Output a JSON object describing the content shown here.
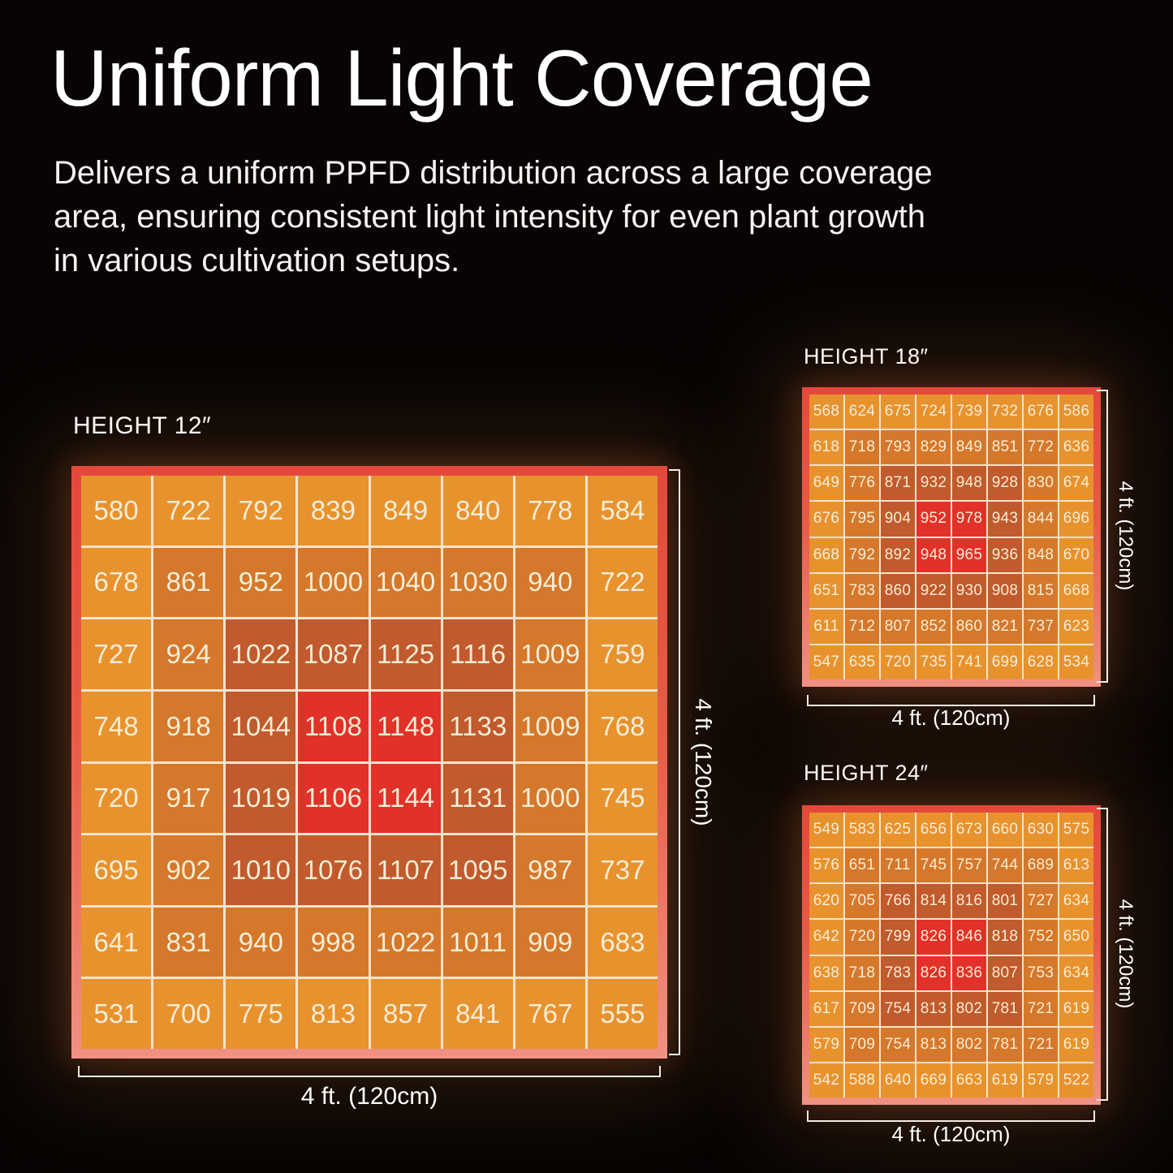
{
  "title": "Uniform Light Coverage",
  "description_lines": [
    "Delivers a uniform PPFD distribution across a large coverage",
    "area, ensuring consistent light intensity for even plant growth",
    "in various cultivation setups."
  ],
  "colors": {
    "background": "#070403",
    "heading_text": "#FFFFFF",
    "body_text": "#F5F3F1",
    "cell_text": "#F7EDD6",
    "grid_line": "#F7E3CC",
    "frame_red_top": "#E4483C",
    "frame_salmon_bottom": "#F09183",
    "bracket": "#F3EDE5",
    "levels": [
      "#E8922E",
      "#D5782B",
      "#C15A2C",
      "#E23129"
    ]
  },
  "chart_data": [
    {
      "type": "heatmap",
      "title": "HEIGHT 12″",
      "x_label": "4 ft. (120cm)",
      "y_label": "4 ft. (120cm)",
      "values": [
        [
          580,
          722,
          792,
          839,
          849,
          840,
          778,
          584
        ],
        [
          678,
          861,
          952,
          1000,
          1040,
          1030,
          940,
          722
        ],
        [
          727,
          924,
          1022,
          1087,
          1125,
          1116,
          1009,
          759
        ],
        [
          748,
          918,
          1044,
          1108,
          1148,
          1133,
          1009,
          768
        ],
        [
          720,
          917,
          1019,
          1106,
          1144,
          1131,
          1000,
          745
        ],
        [
          695,
          902,
          1010,
          1076,
          1107,
          1095,
          987,
          737
        ],
        [
          641,
          831,
          940,
          998,
          1022,
          1011,
          909,
          683
        ],
        [
          531,
          700,
          775,
          813,
          857,
          841,
          767,
          555
        ]
      ],
      "levels": [
        [
          0,
          0,
          0,
          0,
          0,
          0,
          0,
          0
        ],
        [
          0,
          1,
          1,
          1,
          1,
          1,
          1,
          0
        ],
        [
          0,
          1,
          2,
          2,
          2,
          2,
          1,
          0
        ],
        [
          0,
          1,
          2,
          3,
          3,
          2,
          1,
          0
        ],
        [
          0,
          1,
          2,
          3,
          3,
          2,
          1,
          0
        ],
        [
          0,
          1,
          2,
          2,
          2,
          2,
          1,
          0
        ],
        [
          0,
          1,
          1,
          1,
          1,
          1,
          1,
          0
        ],
        [
          0,
          0,
          0,
          0,
          0,
          0,
          0,
          0
        ]
      ]
    },
    {
      "type": "heatmap",
      "title": "HEIGHT 18″",
      "x_label": "4 ft. (120cm)",
      "y_label": "4 ft. (120cm)",
      "values": [
        [
          568,
          624,
          675,
          724,
          739,
          732,
          676,
          586
        ],
        [
          618,
          718,
          793,
          829,
          849,
          851,
          772,
          636
        ],
        [
          649,
          776,
          871,
          932,
          948,
          928,
          830,
          674
        ],
        [
          676,
          795,
          904,
          952,
          978,
          943,
          844,
          696
        ],
        [
          668,
          792,
          892,
          948,
          965,
          936,
          848,
          670
        ],
        [
          651,
          783,
          860,
          922,
          930,
          908,
          815,
          668
        ],
        [
          611,
          712,
          807,
          852,
          860,
          821,
          737,
          623
        ],
        [
          547,
          635,
          720,
          735,
          741,
          699,
          628,
          534
        ]
      ],
      "levels": [
        [
          0,
          0,
          0,
          0,
          0,
          0,
          0,
          0
        ],
        [
          0,
          1,
          1,
          1,
          1,
          1,
          1,
          0
        ],
        [
          0,
          1,
          2,
          2,
          2,
          2,
          1,
          0
        ],
        [
          0,
          1,
          2,
          3,
          3,
          2,
          1,
          0
        ],
        [
          0,
          1,
          2,
          3,
          3,
          2,
          1,
          0
        ],
        [
          0,
          1,
          2,
          2,
          2,
          2,
          1,
          0
        ],
        [
          0,
          1,
          1,
          1,
          1,
          1,
          1,
          0
        ],
        [
          0,
          0,
          0,
          0,
          0,
          0,
          0,
          0
        ]
      ]
    },
    {
      "type": "heatmap",
      "title": "HEIGHT 24″",
      "x_label": "4 ft. (120cm)",
      "y_label": "4 ft. (120cm)",
      "values": [
        [
          549,
          583,
          625,
          656,
          673,
          660,
          630,
          575
        ],
        [
          576,
          651,
          711,
          745,
          757,
          744,
          689,
          613
        ],
        [
          620,
          705,
          766,
          814,
          816,
          801,
          727,
          634
        ],
        [
          642,
          720,
          799,
          826,
          846,
          818,
          752,
          650
        ],
        [
          638,
          718,
          783,
          826,
          836,
          807,
          753,
          634
        ],
        [
          617,
          709,
          754,
          813,
          802,
          781,
          721,
          619
        ],
        [
          579,
          709,
          754,
          813,
          802,
          781,
          721,
          619
        ],
        [
          542,
          588,
          640,
          669,
          663,
          619,
          579,
          522
        ]
      ],
      "levels": [
        [
          0,
          0,
          0,
          0,
          0,
          0,
          0,
          0
        ],
        [
          0,
          1,
          1,
          1,
          1,
          1,
          1,
          0
        ],
        [
          0,
          1,
          2,
          2,
          2,
          2,
          1,
          0
        ],
        [
          0,
          1,
          2,
          3,
          3,
          2,
          1,
          0
        ],
        [
          0,
          1,
          2,
          3,
          3,
          2,
          1,
          0
        ],
        [
          0,
          1,
          2,
          2,
          2,
          2,
          1,
          0
        ],
        [
          0,
          1,
          1,
          1,
          1,
          1,
          1,
          0
        ],
        [
          0,
          0,
          0,
          0,
          0,
          0,
          0,
          0
        ]
      ]
    }
  ]
}
